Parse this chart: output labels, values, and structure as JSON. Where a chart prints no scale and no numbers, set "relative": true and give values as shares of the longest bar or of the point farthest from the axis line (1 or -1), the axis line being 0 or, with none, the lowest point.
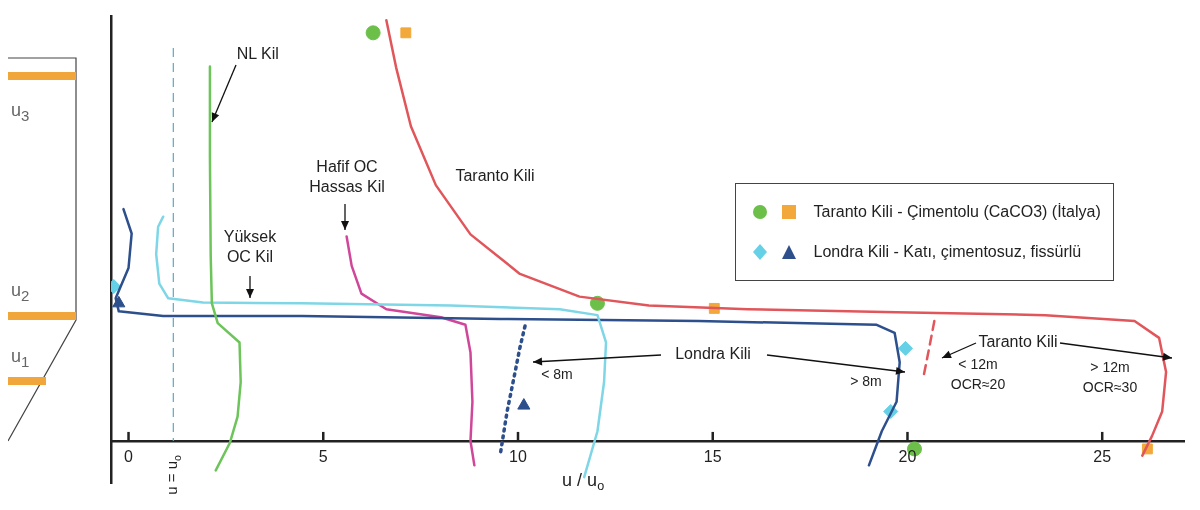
{
  "chart_data": {
    "type": "line",
    "relative": true,
    "xlabel": "u / u$_{o}$",
    "xlim": [
      -0.45,
      27.1
    ],
    "xticks": [
      0,
      5,
      10,
      15,
      20,
      25
    ],
    "grid": false,
    "legend": "right",
    "series": [
      {
        "color": "#6cc45a",
        "x": [
          2.09,
          2.09,
          2.11,
          2.14,
          2.29,
          2.85,
          2.88,
          2.8,
          2.6,
          2.24
        ],
        "values": [
          0.89,
          0.673,
          0.44,
          0.327,
          0.28,
          0.234,
          0.14,
          0.058,
          -0.005,
          -0.07
        ]
      },
      {
        "color": "#7ed6e6",
        "x": [
          0.89,
          0.76,
          0.71,
          0.79,
          1.02,
          1.91,
          4.45,
          8.27,
          11.07,
          12.04,
          12.26,
          12.21,
          12.04,
          11.7
        ],
        "values": [
          0.533,
          0.509,
          0.444,
          0.374,
          0.339,
          0.329,
          0.327,
          0.322,
          0.313,
          0.299,
          0.234,
          0.14,
          0.023,
          -0.086
        ]
      },
      {
        "color": "#2d4f8c",
        "x": [
          -0.13,
          0.08,
          0.0,
          -0.33,
          -0.25,
          0.89,
          4.45,
          9.54,
          14.63,
          19.21,
          19.67,
          19.8,
          19.72,
          19.34,
          19.01
        ],
        "values": [
          0.551,
          0.493,
          0.411,
          0.339,
          0.308,
          0.297,
          0.297,
          0.29,
          0.285,
          0.276,
          0.257,
          0.187,
          0.093,
          0.023,
          -0.058
        ]
      },
      {
        "color": "#2d4f8c",
        "line_style": "dotted",
        "x": [
          10.18,
          10.05,
          9.9,
          9.72,
          9.54
        ],
        "values": [
          0.273,
          0.222,
          0.152,
          0.07,
          -0.035
        ]
      },
      {
        "color": "#d0479a",
        "x": [
          5.6,
          5.73,
          5.98,
          6.62,
          8.02,
          8.65,
          8.78,
          8.83,
          8.78,
          8.88
        ],
        "values": [
          0.486,
          0.416,
          0.35,
          0.313,
          0.294,
          0.276,
          0.21,
          0.093,
          0.0,
          -0.058
        ]
      },
      {
        "color": "#e0565b",
        "x": [
          6.62,
          6.87,
          7.25,
          7.89,
          8.78,
          10.05,
          11.58,
          13.36,
          15.9,
          19.72,
          23.54,
          25.83,
          26.46,
          26.64,
          26.54,
          26.28,
          26.03
        ],
        "values": [
          1.0,
          0.888,
          0.748,
          0.608,
          0.491,
          0.397,
          0.343,
          0.322,
          0.313,
          0.306,
          0.299,
          0.285,
          0.245,
          0.164,
          0.07,
          0.012,
          -0.035
        ]
      },
      {
        "color": "#e0565b",
        "line_style": "dashed",
        "x": [
          20.69,
          20.56,
          20.41
        ],
        "values": [
          0.285,
          0.222,
          0.152
        ]
      },
      {
        "type": "scatter",
        "color": "#6cc04a",
        "marker": "circle",
        "x": [
          6.28,
          12.04,
          20.18
        ],
        "values": [
          0.97,
          0.327,
          -0.019
        ]
      },
      {
        "type": "scatter",
        "name": "Taranto Kili - Çimentolu (CaCO3) (İtalya)",
        "color": "#f2a83a",
        "marker": "square",
        "x": [
          7.12,
          15.04,
          26.16
        ],
        "values": [
          0.97,
          0.315,
          -0.019
        ]
      },
      {
        "type": "scatter",
        "color": "#66d0e6",
        "marker": "diamond",
        "x": [
          -0.38,
          19.95,
          19.57
        ],
        "values": [
          0.367,
          0.22,
          0.07
        ]
      },
      {
        "type": "scatter",
        "name": "Londra Kili - Katı, çimentosuz, fissürlü",
        "color": "#2d4f8c",
        "marker": "triangle",
        "x": [
          -0.25,
          10.15
        ],
        "values": [
          0.327,
          0.084
        ]
      }
    ],
    "ref_lines": [
      {
        "axis": "x",
        "value": 1.15,
        "label": "u = u$_{o}$",
        "color": "#5aa9c8",
        "line_style": "dashed"
      }
    ],
    "annotations": [
      "NL Kil",
      "Yüksek\nOC Kil",
      "Hafif OC\nHassas Kil",
      "Taranto Kili",
      "Londra Kili",
      "< 8m",
      "> 8m",
      "Taranto Kili",
      "< 12m\nOCR≈20",
      "> 12m\nOCR≈30",
      "u$_{3}$",
      "u$_{2}$",
      "u$_{1}$"
    ]
  }
}
